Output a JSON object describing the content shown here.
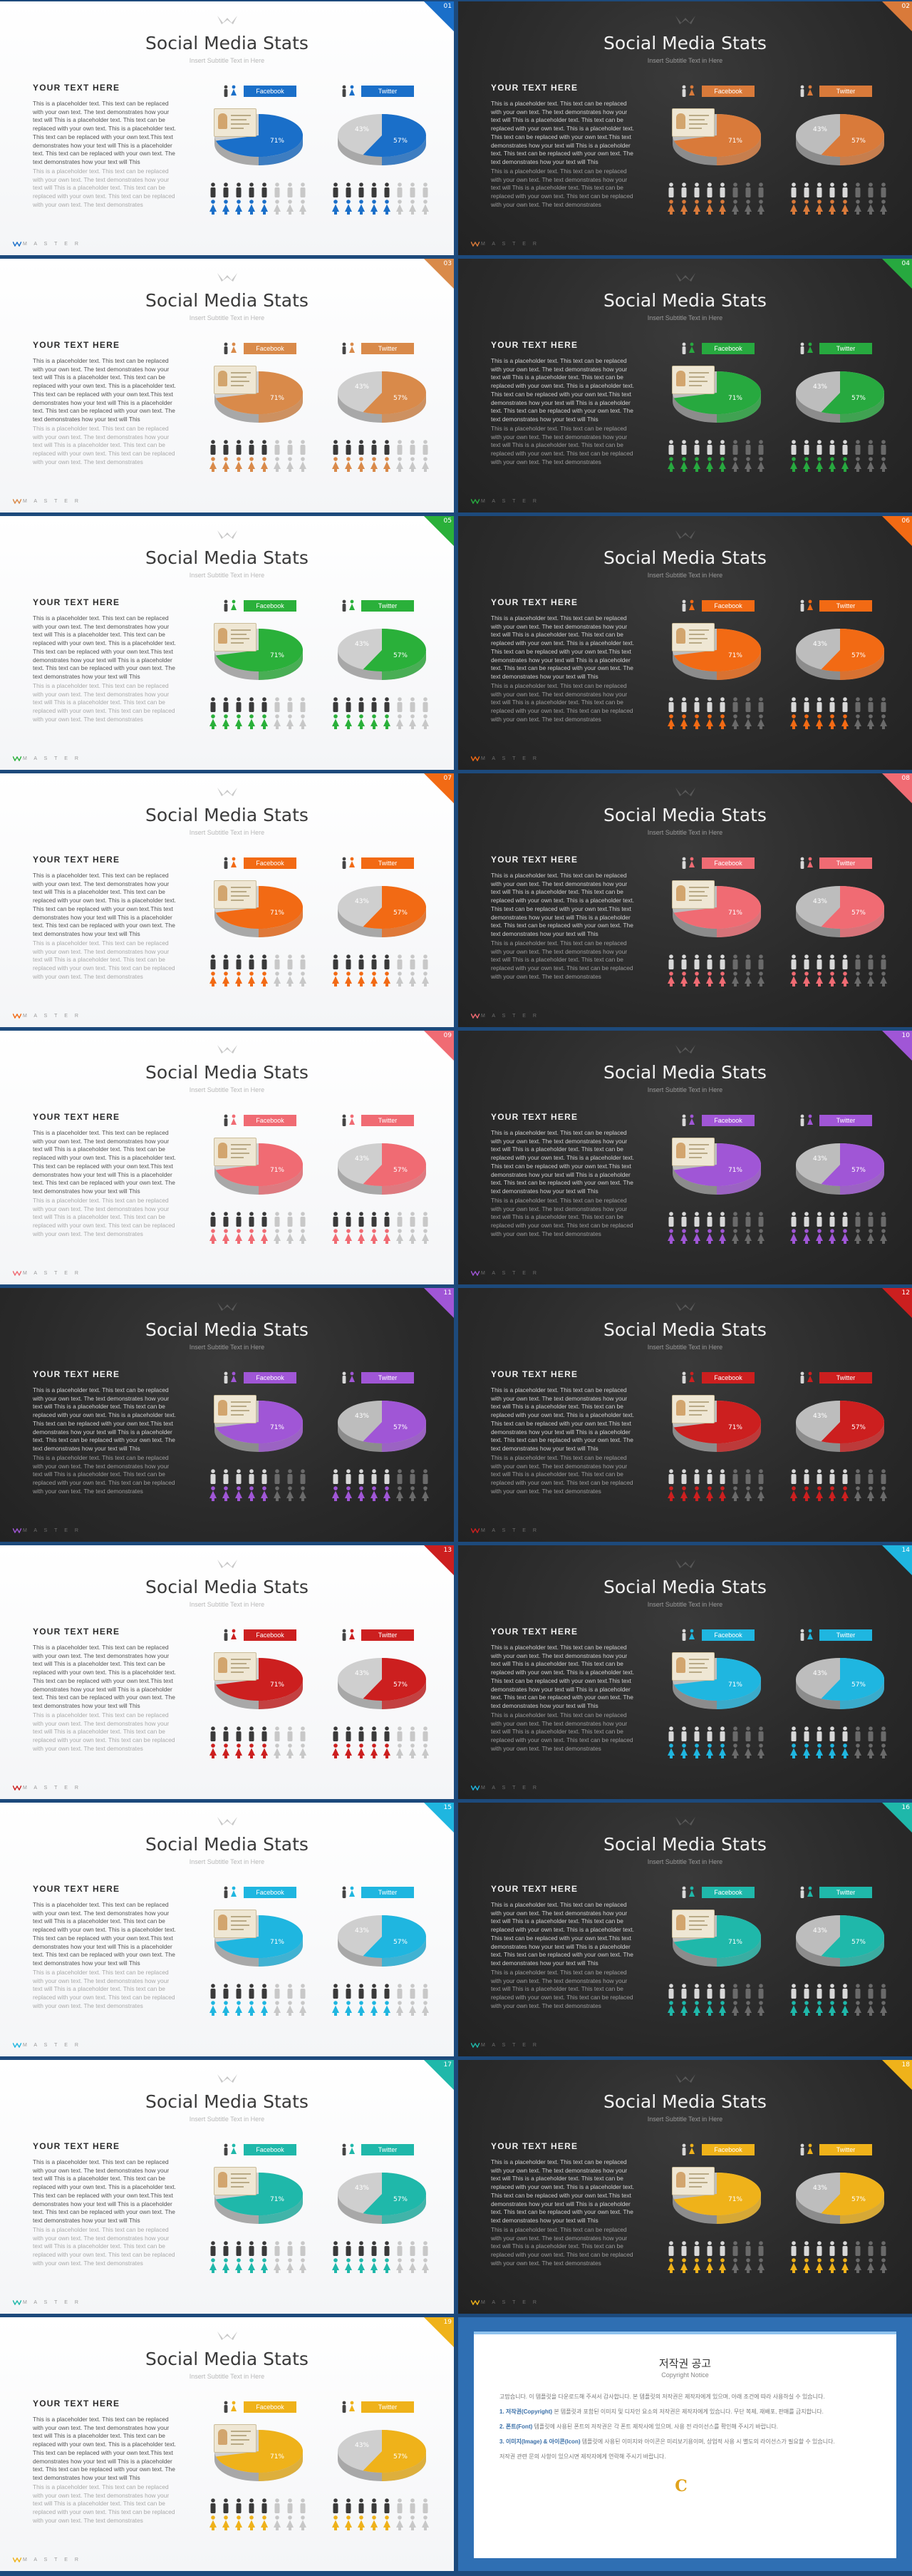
{
  "deck": {
    "title": "Social Media Stats",
    "subtitle": "Insert Subtitle Text in Here",
    "heading": "YOUR TEXT HERE",
    "paragraph1": "This is a placeholder text. This text can be replaced with your own text. The text demonstrates how your text will This is a placeholder text. This text can be replaced with your own text. This is a placeholder text. This text can be replaced with your own text.This text demonstrates how your text will This is a placeholder text. This text can be replaced with your own text. The text demonstrates how your text will This",
    "paragraph2": "This is a placeholder text. This text can be replaced with your own text. The text demonstrates how your text will This is a placeholder text. This text can be replaced with your own text. This text can be replaced with your own text. The text demonstrates",
    "facebook_label": "Facebook",
    "twitter_label": "Twitter",
    "facebook_stats": {
      "left_value": "29%",
      "right_value": "71%",
      "highlight_fraction": 0.71
    },
    "twitter_stats": {
      "left_value": "43%",
      "right_value": "57%",
      "highlight_fraction": 0.57
    },
    "people_highlight": 5,
    "people_total": 8,
    "brand": "M A S T E R"
  },
  "slides": [
    {
      "num": "01",
      "theme": "light",
      "accent": "#1a6fc9"
    },
    {
      "num": "02",
      "theme": "dark",
      "accent": "#d97a3a"
    },
    {
      "num": "03",
      "theme": "light",
      "accent": "#d98a4a"
    },
    {
      "num": "04",
      "theme": "dark",
      "accent": "#27a93f"
    },
    {
      "num": "05",
      "theme": "light",
      "accent": "#2ab03a"
    },
    {
      "num": "06",
      "theme": "dark",
      "accent": "#f26a14"
    },
    {
      "num": "07",
      "theme": "light",
      "accent": "#f26a14"
    },
    {
      "num": "08",
      "theme": "dark",
      "accent": "#f06b73"
    },
    {
      "num": "09",
      "theme": "light",
      "accent": "#f06b73"
    },
    {
      "num": "10",
      "theme": "dark",
      "accent": "#a056d6"
    },
    {
      "num": "11",
      "theme": "dark",
      "accent": "#a056d6"
    },
    {
      "num": "12",
      "theme": "dark",
      "accent": "#cc1f1f"
    },
    {
      "num": "13",
      "theme": "light",
      "accent": "#cc1f1f"
    },
    {
      "num": "14",
      "theme": "dark",
      "accent": "#1fb6e0"
    },
    {
      "num": "15",
      "theme": "light",
      "accent": "#1fb6e0"
    },
    {
      "num": "16",
      "theme": "dark",
      "accent": "#1fb8aa"
    },
    {
      "num": "17",
      "theme": "light",
      "accent": "#1fb8aa"
    },
    {
      "num": "18",
      "theme": "dark",
      "accent": "#efb21a"
    },
    {
      "num": "19",
      "theme": "light",
      "accent": "#efb21a"
    }
  ],
  "notice": {
    "title": "저작권 공고",
    "subtitle": "Copyright Notice",
    "intro": "고맙습니다. 이 템플릿을 다운로드해 주셔서 감사합니다. 본 템플릿의 저작권은 제작자에게 있으며, 아래 조건에 따라 사용하실 수 있습니다.",
    "item1_title": "1. 저작권(Copyright)",
    "item1": "본 템플릿과 포함된 이미지 및 디자인 요소의 저작권은 제작자에게 있습니다. 무단 복제, 재배포, 판매를 금지합니다.",
    "item2_title": "2. 폰트(Font)",
    "item2": "템플릿에 사용된 폰트의 저작권은 각 폰트 제작사에 있으며, 사용 전 라이선스를 확인해 주시기 바랍니다.",
    "item3_title": "3. 이미지(Image) & 아이콘(Icon)",
    "item3": "템플릿에 사용된 이미지와 아이콘은 미리보기용이며, 상업적 사용 시 별도의 라이선스가 필요할 수 있습니다.",
    "outro": "저작권 관련 문의 사항이 있으시면 제작자에게 연락해 주시기 바랍니다.",
    "logo_letter": "C"
  }
}
